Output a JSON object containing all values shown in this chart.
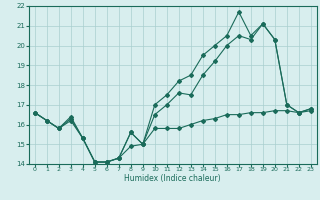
{
  "xlabel": "Humidex (Indice chaleur)",
  "bg_color": "#d8eeee",
  "grid_color": "#aacfcf",
  "line_color": "#1a6b5a",
  "xlim": [
    -0.5,
    23.5
  ],
  "ylim": [
    14,
    22
  ],
  "xticks": [
    0,
    1,
    2,
    3,
    4,
    5,
    6,
    7,
    8,
    9,
    10,
    11,
    12,
    13,
    14,
    15,
    16,
    17,
    18,
    19,
    20,
    21,
    22,
    23
  ],
  "yticks": [
    14,
    15,
    16,
    17,
    18,
    19,
    20,
    21,
    22
  ],
  "line1_x": [
    0,
    1,
    2,
    3,
    4,
    5,
    6,
    7,
    8,
    9,
    10,
    11,
    12,
    13,
    14,
    15,
    16,
    17,
    18,
    19,
    20,
    21,
    22,
    23
  ],
  "line1_y": [
    16.6,
    16.2,
    15.8,
    16.2,
    15.3,
    14.1,
    14.1,
    14.3,
    14.9,
    15.0,
    15.8,
    15.8,
    15.8,
    16.0,
    16.2,
    16.3,
    16.5,
    16.5,
    16.6,
    16.6,
    16.7,
    16.7,
    16.6,
    16.7
  ],
  "line2_x": [
    0,
    1,
    2,
    3,
    4,
    5,
    6,
    7,
    8,
    9,
    10,
    11,
    12,
    13,
    14,
    15,
    16,
    17,
    18,
    19,
    20,
    21,
    22,
    23
  ],
  "line2_y": [
    16.6,
    16.2,
    15.8,
    16.3,
    15.3,
    14.1,
    14.1,
    14.3,
    15.6,
    15.0,
    16.5,
    17.0,
    17.6,
    17.5,
    18.5,
    19.2,
    20.0,
    20.5,
    20.3,
    21.1,
    20.3,
    17.0,
    16.6,
    16.8
  ],
  "line3_x": [
    0,
    1,
    2,
    3,
    4,
    5,
    6,
    7,
    8,
    9,
    10,
    11,
    12,
    13,
    14,
    15,
    16,
    17,
    18,
    19,
    20,
    21,
    22,
    23
  ],
  "line3_y": [
    16.6,
    16.2,
    15.8,
    16.4,
    15.3,
    14.1,
    14.1,
    14.3,
    15.6,
    15.0,
    17.0,
    17.5,
    18.2,
    18.5,
    19.5,
    20.0,
    20.5,
    21.7,
    20.5,
    21.1,
    20.3,
    17.0,
    16.6,
    16.8
  ]
}
